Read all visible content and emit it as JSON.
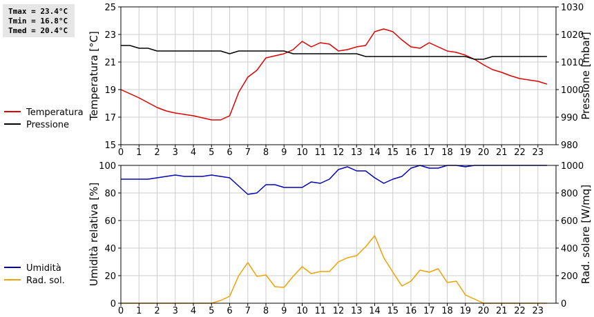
{
  "stats": {
    "tmax": "Tmax = 23.4°C",
    "tmin": "Tmin = 16.8°C",
    "tmed": "Tmed = 20.4°C"
  },
  "colors": {
    "temperature": "#dd0000",
    "pressure": "#000000",
    "humidity": "#0000bb",
    "radiation": "#f0a000",
    "grid": "#cccccc",
    "frame": "#000000"
  },
  "chart_data": [
    {
      "type": "line",
      "x_ticks": [
        "0",
        "1",
        "2",
        "3",
        "4",
        "5",
        "6",
        "7",
        "8",
        "9",
        "10",
        "11",
        "12",
        "13",
        "14",
        "15",
        "16",
        "17",
        "18",
        "19",
        "20",
        "21",
        "22",
        "23"
      ],
      "xlim": [
        0,
        24
      ],
      "y_left": {
        "label": "Temperatura [°C]",
        "lim": [
          15,
          25
        ],
        "ticks": [
          "15",
          "17",
          "19",
          "21",
          "23",
          "25"
        ]
      },
      "y_right": {
        "label": "Pressione [mbar]",
        "lim": [
          980,
          1030
        ],
        "ticks": [
          "980",
          "990",
          "1000",
          "1010",
          "1020",
          "1030"
        ]
      },
      "legend": {
        "placement": "left",
        "entries": [
          "Temperatura",
          "Pressione"
        ]
      },
      "grid": true,
      "series": [
        {
          "name": "Temperatura",
          "axis": "left",
          "x": [
            0,
            0.5,
            1,
            1.5,
            2,
            2.5,
            3,
            3.5,
            4,
            4.5,
            5,
            5.5,
            6,
            6.5,
            7,
            7.5,
            8,
            8.5,
            9,
            9.5,
            10,
            10.5,
            11,
            11.5,
            12,
            12.5,
            13,
            13.5,
            14,
            14.5,
            15,
            15.5,
            16,
            16.5,
            17,
            17.5,
            18,
            18.5,
            19,
            19.5,
            20,
            20.5,
            21,
            21.5,
            22,
            22.5,
            23,
            23.5
          ],
          "values": [
            19.0,
            18.7,
            18.4,
            18.05,
            17.7,
            17.45,
            17.3,
            17.2,
            17.1,
            16.95,
            16.8,
            16.8,
            17.1,
            18.8,
            19.9,
            20.4,
            21.3,
            21.45,
            21.6,
            21.9,
            22.5,
            22.1,
            22.4,
            22.3,
            21.8,
            21.9,
            22.1,
            22.2,
            23.2,
            23.4,
            23.2,
            22.6,
            22.1,
            22.0,
            22.4,
            22.1,
            21.8,
            21.7,
            21.5,
            21.2,
            20.8,
            20.45,
            20.25,
            20.0,
            19.8,
            19.7,
            19.6,
            19.4
          ]
        },
        {
          "name": "Pressione",
          "axis": "right",
          "x": [
            0,
            0.5,
            1,
            1.5,
            2,
            2.5,
            3,
            3.5,
            4,
            4.5,
            5,
            5.5,
            6,
            6.5,
            7,
            7.5,
            8,
            8.5,
            9,
            9.5,
            10,
            10.5,
            11,
            11.5,
            12,
            12.5,
            13,
            13.5,
            14,
            14.5,
            15,
            15.5,
            16,
            16.5,
            17,
            17.5,
            18,
            18.5,
            19,
            19.5,
            20,
            20.5,
            21,
            21.5,
            22,
            22.5,
            23,
            23.5
          ],
          "values": [
            1016,
            1016,
            1015,
            1015,
            1014,
            1014,
            1014,
            1014,
            1014,
            1014,
            1014,
            1014,
            1013,
            1014,
            1014,
            1014,
            1014,
            1014,
            1014,
            1013,
            1013,
            1013,
            1013,
            1013,
            1013,
            1013,
            1013,
            1012,
            1012,
            1012,
            1012,
            1012,
            1012,
            1012,
            1012,
            1012,
            1012,
            1012,
            1012,
            1011,
            1011,
            1012,
            1012,
            1012,
            1012,
            1012,
            1012,
            1012
          ]
        }
      ]
    },
    {
      "type": "line",
      "x_ticks": [
        "0",
        "1",
        "2",
        "3",
        "4",
        "5",
        "6",
        "7",
        "8",
        "9",
        "10",
        "11",
        "12",
        "13",
        "14",
        "15",
        "16",
        "17",
        "18",
        "19",
        "20",
        "21",
        "22",
        "23"
      ],
      "xlim": [
        0,
        24
      ],
      "y_left": {
        "label": "Umidità relativa [%]",
        "lim": [
          0,
          100
        ],
        "ticks": [
          "0",
          "20",
          "40",
          "60",
          "80",
          "100"
        ]
      },
      "y_right": {
        "label": "Rad. solare [W/mq]",
        "lim": [
          0,
          1000
        ],
        "ticks": [
          "0",
          "200",
          "400",
          "600",
          "800",
          "1000"
        ]
      },
      "legend": {
        "placement": "left",
        "entries": [
          "Umidità",
          "Rad. sol."
        ]
      },
      "grid": true,
      "series": [
        {
          "name": "Umidità",
          "axis": "left",
          "x": [
            0,
            0.5,
            1,
            1.5,
            2,
            2.5,
            3,
            3.5,
            4,
            4.5,
            5,
            5.5,
            6,
            6.5,
            7,
            7.5,
            8,
            8.5,
            9,
            9.5,
            10,
            10.5,
            11,
            11.5,
            12,
            12.5,
            13,
            13.5,
            14,
            14.5,
            15,
            15.5,
            16,
            16.5,
            17,
            17.5,
            18,
            18.5,
            19,
            19.5,
            20,
            20.5,
            21,
            21.5,
            22,
            22.5,
            23,
            23.5
          ],
          "values": [
            90,
            90,
            90,
            90,
            91,
            92,
            93,
            92,
            92,
            92,
            93,
            92,
            91,
            85,
            79,
            80,
            86,
            86,
            84,
            84,
            84,
            88,
            87,
            90,
            97,
            99,
            96,
            96,
            91,
            87,
            90,
            92,
            98,
            100,
            98,
            98,
            100,
            100,
            99,
            100,
            100,
            100,
            100,
            100,
            100,
            100,
            100,
            100
          ]
        },
        {
          "name": "Rad. sol.",
          "axis": "right",
          "x": [
            0,
            0.5,
            1,
            1.5,
            2,
            2.5,
            3,
            3.5,
            4,
            4.5,
            5,
            5.5,
            6,
            6.5,
            7,
            7.5,
            8,
            8.5,
            9,
            9.5,
            10,
            10.5,
            11,
            11.5,
            12,
            12.5,
            13,
            13.5,
            14,
            14.5,
            15,
            15.5,
            16,
            16.5,
            17,
            17.5,
            18,
            18.5,
            19,
            19.5,
            20,
            20.5,
            21,
            21.5,
            22,
            22.5,
            23,
            23.5
          ],
          "values": [
            0,
            0,
            0,
            0,
            0,
            0,
            0,
            0,
            0,
            0,
            0,
            20,
            50,
            200,
            295,
            195,
            205,
            120,
            115,
            195,
            265,
            215,
            230,
            230,
            300,
            330,
            345,
            410,
            490,
            330,
            225,
            125,
            160,
            240,
            225,
            250,
            150,
            160,
            60,
            30,
            0,
            0,
            0,
            0,
            0,
            0,
            0,
            0
          ]
        }
      ]
    }
  ]
}
